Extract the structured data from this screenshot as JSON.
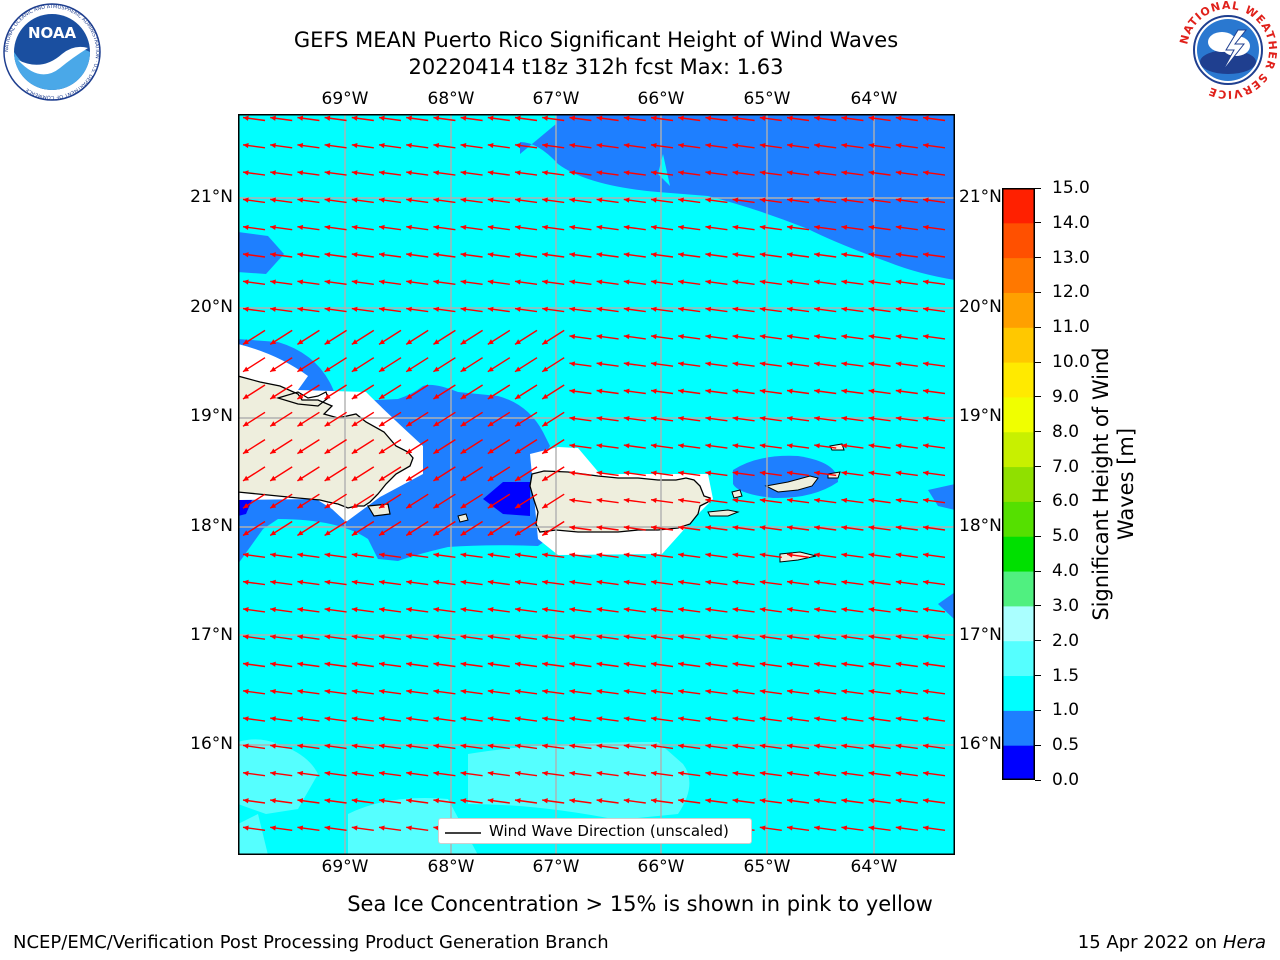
{
  "title": {
    "line1": "GEFS MEAN Puerto Rico Significant Height of Wind Waves",
    "line2": "20220414 t18z 312h fcst   Max: 1.63"
  },
  "logos": {
    "noaa_text": "NOAA",
    "noaa_ring_text": "NATIONAL OCEANIC AND ATMOSPHERIC ADMINISTRATION · U.S. DEPARTMENT OF COMMERCE",
    "nws_ring_text": "NATIONAL WEATHER SERVICE"
  },
  "map": {
    "lon_ticks": [
      "69°W",
      "68°W",
      "67°W",
      "66°W",
      "65°W",
      "64°W"
    ],
    "lat_ticks": [
      "21°N",
      "20°N",
      "19°N",
      "18°N",
      "17°N",
      "16°N"
    ],
    "legend_label": "Wind Wave Direction (unscaled)",
    "colors": {
      "ocean_light": "#00ffff",
      "ocean_medium": "#1e7fff",
      "ocean_deep": "#0000ff",
      "ocean_pale": "#55ffff",
      "land": "#eeeedd",
      "arrows": "#ff0000",
      "grid": "#b0b0b0"
    }
  },
  "colorbar": {
    "label": "Significant Height of Wind Waves [m]",
    "ticks": [
      "0.0",
      "0.5",
      "1.0",
      "1.5",
      "2.0",
      "3.0",
      "4.0",
      "5.0",
      "6.0",
      "7.0",
      "8.0",
      "9.0",
      "10.0",
      "11.0",
      "12.0",
      "13.0",
      "14.0",
      "15.0"
    ],
    "colors": [
      "#0000ff",
      "#1e7fff",
      "#00ffff",
      "#55ffff",
      "#aaffff",
      "#50f080",
      "#00e000",
      "#55e000",
      "#90e000",
      "#c8f000",
      "#f0ff00",
      "#ffea00",
      "#ffc800",
      "#ffa000",
      "#ff7800",
      "#ff5000",
      "#ff2000"
    ]
  },
  "note": "Sea Ice Concentration > 15% is shown in pink to yellow",
  "footer": {
    "left": "NCEP/EMC/Verification Post Processing Product Generation Branch",
    "right_prefix": "15 Apr 2022 on ",
    "right_host": "Hera"
  }
}
